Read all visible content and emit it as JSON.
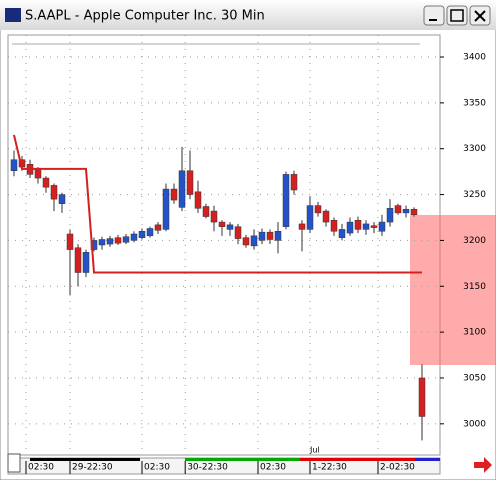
{
  "chart_data": {
    "type": "candlestick",
    "title": "S.AAPL - Apple Computer Inc. 30 Min",
    "open": [
      3276,
      3288,
      3283,
      3277,
      3268,
      3260,
      3240,
      3207,
      3192,
      3165,
      3190,
      3195,
      3196,
      3203,
      3198,
      3200,
      3203,
      3205,
      3217,
      3212,
      3256,
      3236,
      3276,
      3253,
      3237,
      3232,
      3220,
      3212,
      3215,
      3203,
      3194,
      3200,
      3209,
      3200,
      3215,
      3272,
      3218,
      3212,
      3238,
      3232,
      3222,
      3203,
      3208,
      3222,
      3212,
      3216,
      3210,
      3220,
      3238,
      3230,
      3234,
      3050
    ],
    "high": [
      3298,
      3292,
      3288,
      3280,
      3270,
      3262,
      3252,
      3212,
      3196,
      3190,
      3203,
      3204,
      3205,
      3206,
      3207,
      3210,
      3213,
      3215,
      3220,
      3262,
      3262,
      3302,
      3298,
      3265,
      3240,
      3238,
      3222,
      3220,
      3218,
      3206,
      3212,
      3213,
      3212,
      3220,
      3275,
      3276,
      3222,
      3248,
      3242,
      3234,
      3225,
      3218,
      3225,
      3226,
      3222,
      3220,
      3228,
      3245,
      3240,
      3238,
      3236,
      3065
    ],
    "low": [
      3270,
      3276,
      3268,
      3262,
      3252,
      3232,
      3230,
      3140,
      3150,
      3160,
      3188,
      3190,
      3193,
      3195,
      3196,
      3198,
      3201,
      3203,
      3207,
      3210,
      3240,
      3232,
      3245,
      3230,
      3224,
      3210,
      3205,
      3205,
      3196,
      3192,
      3190,
      3196,
      3196,
      3186,
      3212,
      3250,
      3188,
      3208,
      3226,
      3215,
      3205,
      3200,
      3205,
      3208,
      3206,
      3208,
      3205,
      3215,
      3228,
      3225,
      3226,
      2982
    ],
    "close": [
      3288,
      3280,
      3272,
      3268,
      3258,
      3245,
      3250,
      3190,
      3165,
      3187,
      3200,
      3201,
      3202,
      3197,
      3204,
      3207,
      3210,
      3213,
      3211,
      3256,
      3244,
      3276,
      3250,
      3235,
      3226,
      3220,
      3215,
      3217,
      3202,
      3195,
      3205,
      3209,
      3201,
      3210,
      3272,
      3255,
      3212,
      3238,
      3230,
      3220,
      3210,
      3212,
      3220,
      3212,
      3218,
      3214,
      3220,
      3235,
      3230,
      3234,
      3228,
      3008
    ],
    "up_color": "#2452c8",
    "down_color": "#d42020",
    "overlay": {
      "color": "#d42020",
      "values": [
        3315,
        3278,
        3278,
        3278,
        3278,
        3278,
        3278,
        3278,
        3278,
        3278,
        3165,
        3165,
        3165,
        3165,
        3165,
        3165,
        3165,
        3165,
        3165,
        3165,
        3165,
        3165,
        3165,
        3165,
        3165,
        3165,
        3165,
        3165,
        3165,
        3165,
        3165,
        3165,
        3165,
        3165,
        3165,
        3165,
        3165,
        3165,
        3165,
        3165,
        3165,
        3165,
        3165,
        3165,
        3165,
        3165,
        3165,
        3165,
        3165,
        3165,
        3165,
        3165
      ]
    },
    "xlim": [
      -0.75,
      53.25
    ],
    "xticks": [
      {
        "value": 1.5,
        "label": "02:30"
      },
      {
        "value": 7,
        "label": "29-22:30"
      },
      {
        "value": 16,
        "label": "02:30"
      },
      {
        "value": 21.4,
        "label": "30-22:30"
      },
      {
        "value": 30.5,
        "label": "02:30"
      },
      {
        "value": 37,
        "label": "1-22:30"
      },
      {
        "value": 45.5,
        "label": "2-02:30"
      }
    ],
    "ylim": [
      2966,
      3424
    ],
    "yticks": [
      3000,
      3050,
      3100,
      3150,
      3200,
      3250,
      3300,
      3350,
      3400
    ],
    "grid": true,
    "annotations": [
      {
        "text": "Jul",
        "x": 37
      }
    ]
  }
}
